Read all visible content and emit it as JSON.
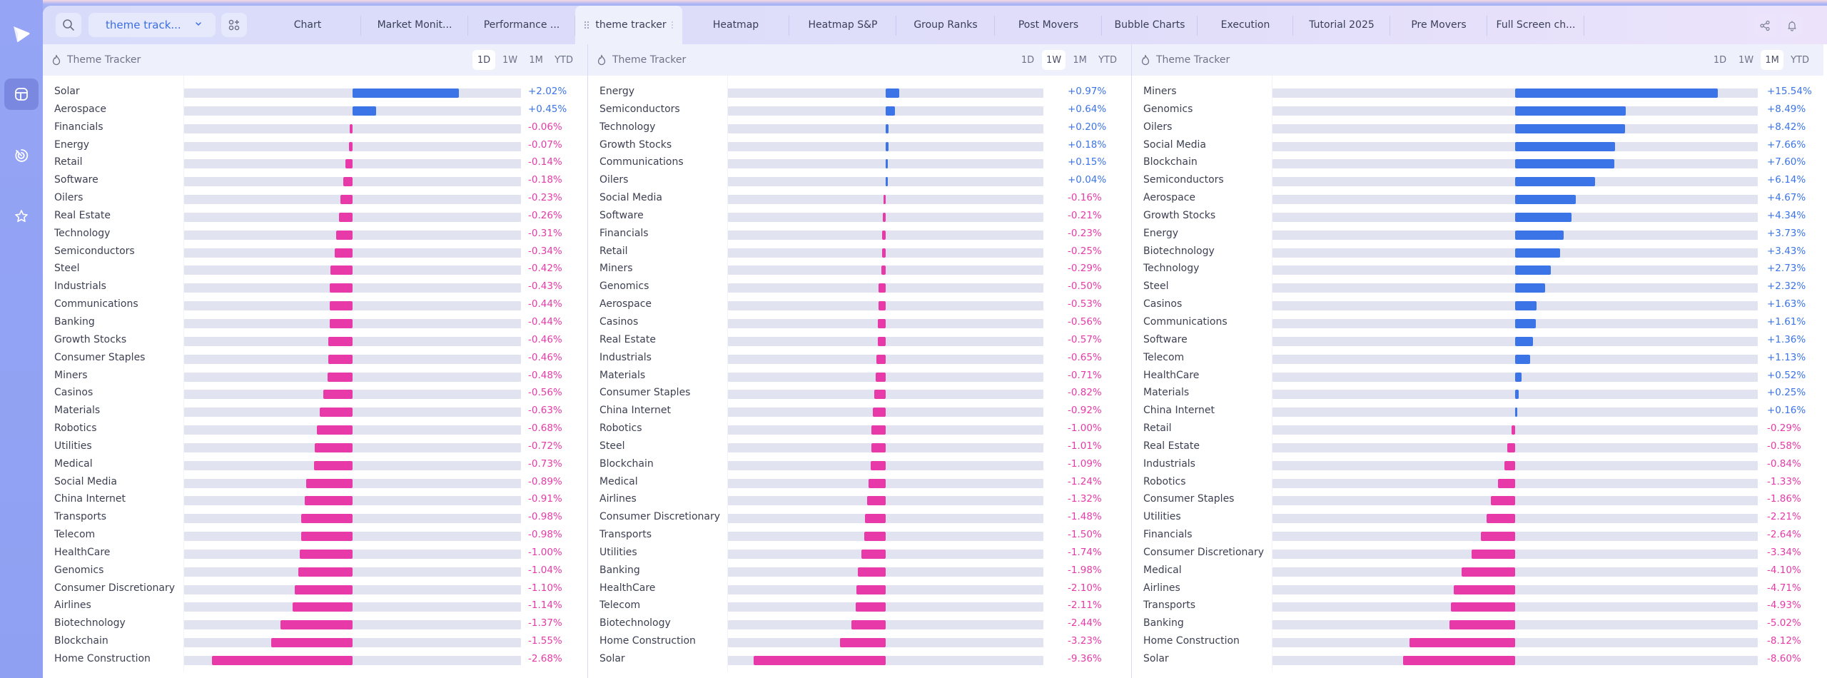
{
  "colors": {
    "positive": "#3b74e6",
    "negative": "#e73aa8",
    "track": "#e1e3f1",
    "sidebar": "#95a4f5"
  },
  "sidebar": {
    "logo_icon": "play-logo-icon",
    "items": [
      {
        "icon": "layout-icon",
        "active": true
      },
      {
        "icon": "radar-icon",
        "active": false
      },
      {
        "icon": "star-icon",
        "active": false
      }
    ]
  },
  "toolbar": {
    "search_icon": "search-icon",
    "dropdown_value": "theme track...",
    "apps_icon": "add-widget-icon",
    "share_icon": "share-icon",
    "bell_icon": "bell-icon"
  },
  "tabs": [
    {
      "label": "Chart",
      "active": false
    },
    {
      "label": "Market Monit...",
      "active": false
    },
    {
      "label": "Performance ...",
      "active": false
    },
    {
      "label": "theme tracker",
      "active": true
    },
    {
      "label": "Heatmap",
      "active": false
    },
    {
      "label": "Heatmap S&P",
      "active": false
    },
    {
      "label": "Group Ranks",
      "active": false
    },
    {
      "label": "Post Movers",
      "active": false
    },
    {
      "label": "Bubble Charts",
      "active": false
    },
    {
      "label": "Execution",
      "active": false
    },
    {
      "label": "Tutorial 2025",
      "active": false
    },
    {
      "label": "Pre Movers",
      "active": false
    },
    {
      "label": "Full Screen ch...",
      "active": false
    }
  ],
  "chart_data": [
    {
      "type": "bar",
      "orientation": "horizontal-diverging",
      "title": "Theme Tracker",
      "periods": [
        "1D",
        "1W",
        "1M",
        "YTD"
      ],
      "selected_period": "1D",
      "categories": [
        "Solar",
        "Aerospace",
        "Financials",
        "Energy",
        "Retail",
        "Software",
        "Oilers",
        "Real Estate",
        "Technology",
        "Semiconductors",
        "Steel",
        "Industrials",
        "Communications",
        "Banking",
        "Growth Stocks",
        "Consumer Staples",
        "Miners",
        "Casinos",
        "Materials",
        "Robotics",
        "Utilities",
        "Medical",
        "Social Media",
        "China Internet",
        "Transports",
        "Telecom",
        "HealthCare",
        "Genomics",
        "Consumer Discretionary",
        "Airlines",
        "Biotechnology",
        "Blockchain",
        "Home Construction"
      ],
      "values": [
        2.02,
        0.45,
        -0.06,
        -0.07,
        -0.14,
        -0.18,
        -0.23,
        -0.26,
        -0.31,
        -0.34,
        -0.42,
        -0.43,
        -0.44,
        -0.44,
        -0.46,
        -0.46,
        -0.48,
        -0.56,
        -0.63,
        -0.68,
        -0.72,
        -0.73,
        -0.89,
        -0.91,
        -0.98,
        -0.98,
        -1.0,
        -1.04,
        -1.1,
        -1.14,
        -1.37,
        -1.55,
        -2.68
      ],
      "labels": [
        "+2.02%",
        "+0.45%",
        "-0.06%",
        "-0.07%",
        "-0.14%",
        "-0.18%",
        "-0.23%",
        "-0.26%",
        "-0.31%",
        "-0.34%",
        "-0.42%",
        "-0.43%",
        "-0.44%",
        "-0.44%",
        "-0.46%",
        "-0.46%",
        "-0.48%",
        "-0.56%",
        "-0.63%",
        "-0.68%",
        "-0.72%",
        "-0.73%",
        "-0.89%",
        "-0.91%",
        "-0.98%",
        "-0.98%",
        "-1.00%",
        "-1.04%",
        "-1.10%",
        "-1.14%",
        "-1.37%",
        "-1.55%",
        "-2.68%"
      ],
      "unit": "%"
    },
    {
      "type": "bar",
      "orientation": "horizontal-diverging",
      "title": "Theme Tracker",
      "periods": [
        "1D",
        "1W",
        "1M",
        "YTD"
      ],
      "selected_period": "1W",
      "categories": [
        "Energy",
        "Semiconductors",
        "Technology",
        "Growth Stocks",
        "Communications",
        "Oilers",
        "Social Media",
        "Software",
        "Financials",
        "Retail",
        "Miners",
        "Genomics",
        "Aerospace",
        "Casinos",
        "Real Estate",
        "Industrials",
        "Materials",
        "Consumer Staples",
        "China Internet",
        "Robotics",
        "Steel",
        "Blockchain",
        "Medical",
        "Airlines",
        "Consumer Discretionary",
        "Transports",
        "Utilities",
        "Banking",
        "HealthCare",
        "Telecom",
        "Biotechnology",
        "Home Construction",
        "Solar"
      ],
      "values": [
        0.97,
        0.64,
        0.2,
        0.18,
        0.15,
        0.04,
        -0.16,
        -0.21,
        -0.23,
        -0.25,
        -0.29,
        -0.5,
        -0.53,
        -0.56,
        -0.57,
        -0.65,
        -0.71,
        -0.82,
        -0.92,
        -1.0,
        -1.01,
        -1.09,
        -1.24,
        -1.32,
        -1.48,
        -1.5,
        -1.74,
        -1.98,
        -2.1,
        -2.11,
        -2.44,
        -3.23,
        -9.36
      ],
      "labels": [
        "+0.97%",
        "+0.64%",
        "+0.20%",
        "+0.18%",
        "+0.15%",
        "+0.04%",
        "-0.16%",
        "-0.21%",
        "-0.23%",
        "-0.25%",
        "-0.29%",
        "-0.50%",
        "-0.53%",
        "-0.56%",
        "-0.57%",
        "-0.65%",
        "-0.71%",
        "-0.82%",
        "-0.92%",
        "-1.00%",
        "-1.01%",
        "-1.09%",
        "-1.24%",
        "-1.32%",
        "-1.48%",
        "-1.50%",
        "-1.74%",
        "-1.98%",
        "-2.10%",
        "-2.11%",
        "-2.44%",
        "-3.23%",
        "-9.36%"
      ],
      "unit": "%"
    },
    {
      "type": "bar",
      "orientation": "horizontal-diverging",
      "title": "Theme Tracker",
      "periods": [
        "1D",
        "1W",
        "1M",
        "YTD"
      ],
      "selected_period": "1M",
      "categories": [
        "Miners",
        "Genomics",
        "Oilers",
        "Social Media",
        "Blockchain",
        "Semiconductors",
        "Aerospace",
        "Growth Stocks",
        "Energy",
        "Biotechnology",
        "Technology",
        "Steel",
        "Casinos",
        "Communications",
        "Software",
        "Telecom",
        "HealthCare",
        "Materials",
        "China Internet",
        "Retail",
        "Real Estate",
        "Industrials",
        "Robotics",
        "Consumer Staples",
        "Utilities",
        "Financials",
        "Consumer Discretionary",
        "Medical",
        "Airlines",
        "Transports",
        "Banking",
        "Home Construction",
        "Solar"
      ],
      "values": [
        15.54,
        8.49,
        8.42,
        7.66,
        7.6,
        6.14,
        4.67,
        4.34,
        3.73,
        3.43,
        2.73,
        2.32,
        1.63,
        1.61,
        1.36,
        1.13,
        0.52,
        0.25,
        0.16,
        -0.29,
        -0.58,
        -0.84,
        -1.33,
        -1.86,
        -2.21,
        -2.64,
        -3.34,
        -4.1,
        -4.71,
        -4.93,
        -5.02,
        -8.12,
        -8.6
      ],
      "labels": [
        "+15.54%",
        "+8.49%",
        "+8.42%",
        "+7.66%",
        "+7.60%",
        "+6.14%",
        "+4.67%",
        "+4.34%",
        "+3.73%",
        "+3.43%",
        "+2.73%",
        "+2.32%",
        "+1.63%",
        "+1.61%",
        "+1.36%",
        "+1.13%",
        "+0.52%",
        "+0.25%",
        "+0.16%",
        "-0.29%",
        "-0.58%",
        "-0.84%",
        "-1.33%",
        "-1.86%",
        "-2.21%",
        "-2.64%",
        "-3.34%",
        "-4.10%",
        "-4.71%",
        "-4.93%",
        "-5.02%",
        "-8.12%",
        "-8.60%"
      ],
      "unit": "%"
    }
  ]
}
